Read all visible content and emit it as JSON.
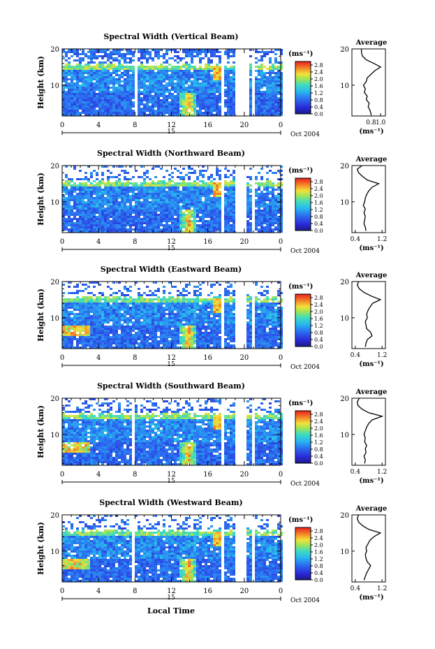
{
  "figure": {
    "xlabel": "Local Time",
    "date_label": "Oct 2004",
    "day_label": "15",
    "height_axis_label": "Height (km)",
    "colorbar_unit": "(ms⁻¹)",
    "colorbar_ticks": [
      "2.8",
      "2.4",
      "2.0",
      "1.6",
      "1.2",
      "0.8",
      "0.4",
      "0.0"
    ],
    "colorbar_range": [
      0.0,
      3.0
    ],
    "side_panel_title": "Average",
    "side_panel_xlabel": "(ms⁻¹)"
  },
  "chart_data": [
    {
      "type": "heatmap",
      "title": "Spectral Width (Vertical Beam)",
      "x_ticks": [
        "0",
        "4",
        "8",
        "12",
        "16",
        "20",
        "0"
      ],
      "xlim": [
        0,
        24
      ],
      "y_ticks": [
        "20",
        "10"
      ],
      "ylim": [
        1.5,
        20
      ],
      "value_range": [
        0.0,
        3.0
      ],
      "data_gaps_hours": [
        [
          7.8,
          8.05
        ],
        [
          17.3,
          17.5
        ],
        [
          18.8,
          20.0
        ],
        [
          20.2,
          20.5
        ],
        [
          20.8,
          21.0
        ]
      ],
      "average_profile": {
        "xlim": [
          0.4,
          1.1
        ],
        "x_ticks": [
          "0.8",
          "1.0"
        ],
        "y_ticks": [
          "20",
          "10"
        ],
        "height_km": [
          2,
          3,
          4,
          5,
          6,
          7,
          8,
          9,
          10,
          11,
          12,
          13,
          14,
          15,
          16,
          17,
          18,
          19,
          20
        ],
        "width_ms": [
          0.8,
          0.78,
          0.74,
          0.76,
          0.7,
          0.72,
          0.66,
          0.68,
          0.64,
          0.7,
          0.72,
          0.8,
          0.88,
          1.0,
          0.86,
          0.7,
          0.62,
          0.6,
          0.6
        ]
      }
    },
    {
      "type": "heatmap",
      "title": "Spectral Width (Northward Beam)",
      "x_ticks": [
        "0",
        "4",
        "8",
        "12",
        "16",
        "20",
        "0"
      ],
      "xlim": [
        0,
        24
      ],
      "y_ticks": [
        "20",
        "10"
      ],
      "ylim": [
        1.5,
        20
      ],
      "value_range": [
        0.0,
        3.0
      ],
      "data_gaps_hours": [
        [
          7.7,
          7.95
        ],
        [
          17.3,
          17.5
        ],
        [
          18.8,
          20.0
        ],
        [
          20.3,
          20.5
        ],
        [
          20.8,
          21.0
        ]
      ],
      "average_profile": {
        "xlim": [
          0.3,
          1.3
        ],
        "x_ticks": [
          "0.4",
          "1.2"
        ],
        "y_ticks": [
          "20",
          "10"
        ],
        "height_km": [
          2,
          3,
          4,
          5,
          6,
          7,
          8,
          9,
          10,
          11,
          12,
          13,
          14,
          15,
          16,
          17,
          18,
          19,
          20
        ],
        "width_ms": [
          0.72,
          0.7,
          0.66,
          0.68,
          0.7,
          0.66,
          0.7,
          0.64,
          0.68,
          0.7,
          0.74,
          0.8,
          0.9,
          1.1,
          0.76,
          0.62,
          0.5,
          0.46,
          0.6
        ]
      }
    },
    {
      "type": "heatmap",
      "title": "Spectral Width (Eastward Beam)",
      "x_ticks": [
        "0",
        "4",
        "8",
        "12",
        "16",
        "20",
        "0"
      ],
      "xlim": [
        0,
        24
      ],
      "y_ticks": [
        "20",
        "10"
      ],
      "ylim": [
        1.5,
        20
      ],
      "value_range": [
        0.0,
        3.0
      ],
      "data_gaps_hours": [
        [
          7.7,
          7.95
        ],
        [
          17.3,
          17.5
        ],
        [
          18.8,
          20.0
        ],
        [
          20.3,
          20.5
        ],
        [
          20.8,
          21.0
        ]
      ],
      "average_profile": {
        "xlim": [
          0.3,
          1.3
        ],
        "x_ticks": [
          "0.4",
          "1.2"
        ],
        "y_ticks": [
          "20",
          "10"
        ],
        "height_km": [
          2,
          3,
          4,
          5,
          6,
          7,
          8,
          9,
          10,
          11,
          12,
          13,
          14,
          15,
          16,
          17,
          18,
          19,
          20
        ],
        "width_ms": [
          0.7,
          0.72,
          0.76,
          0.9,
          0.86,
          0.74,
          0.72,
          0.7,
          0.76,
          0.74,
          0.78,
          0.84,
          0.92,
          1.15,
          0.88,
          0.66,
          0.52,
          0.46,
          0.5
        ]
      }
    },
    {
      "type": "heatmap",
      "title": "Spectral Width (Southward Beam)",
      "x_ticks": [
        "0",
        "4",
        "8",
        "12",
        "16",
        "20",
        "0"
      ],
      "xlim": [
        0,
        24
      ],
      "y_ticks": [
        "20",
        "10"
      ],
      "ylim": [
        1.5,
        20
      ],
      "value_range": [
        0.0,
        3.0
      ],
      "data_gaps_hours": [
        [
          7.6,
          7.85
        ],
        [
          17.3,
          17.5
        ],
        [
          18.8,
          20.0
        ],
        [
          20.3,
          20.5
        ],
        [
          20.8,
          21.0
        ]
      ],
      "average_profile": {
        "xlim": [
          0.3,
          1.3
        ],
        "x_ticks": [
          "0.4",
          "1.2"
        ],
        "y_ticks": [
          "20",
          "10"
        ],
        "height_km": [
          2,
          3,
          4,
          5,
          6,
          7,
          8,
          9,
          10,
          11,
          12,
          13,
          14,
          15,
          16,
          17,
          18,
          19,
          20
        ],
        "width_ms": [
          0.68,
          0.7,
          0.66,
          0.72,
          0.7,
          0.74,
          0.68,
          0.7,
          0.66,
          0.7,
          0.74,
          0.8,
          0.9,
          1.2,
          0.8,
          0.6,
          0.48,
          0.46,
          0.52
        ]
      }
    },
    {
      "type": "heatmap",
      "title": "Spectral Width (Westward Beam)",
      "x_ticks": [
        "0",
        "4",
        "8",
        "12",
        "16",
        "20",
        "0"
      ],
      "xlim": [
        0,
        24
      ],
      "y_ticks": [
        "20",
        "10"
      ],
      "ylim": [
        1.5,
        20
      ],
      "value_range": [
        0.0,
        3.0
      ],
      "data_gaps_hours": [
        [
          7.6,
          7.85
        ],
        [
          17.3,
          17.5
        ],
        [
          18.8,
          20.0
        ],
        [
          20.3,
          20.5
        ],
        [
          20.8,
          21.0
        ]
      ],
      "average_profile": {
        "xlim": [
          0.3,
          1.3
        ],
        "x_ticks": [
          "0.4",
          "1.2"
        ],
        "y_ticks": [
          "20",
          "10"
        ],
        "height_km": [
          2,
          3,
          4,
          5,
          6,
          7,
          8,
          9,
          10,
          11,
          12,
          13,
          14,
          15,
          16,
          17,
          18,
          19,
          20
        ],
        "width_ms": [
          0.66,
          0.7,
          0.74,
          0.8,
          0.86,
          0.76,
          0.72,
          0.7,
          0.74,
          0.72,
          0.78,
          0.84,
          0.96,
          1.15,
          0.8,
          0.62,
          0.5,
          0.46,
          0.5
        ]
      }
    }
  ]
}
